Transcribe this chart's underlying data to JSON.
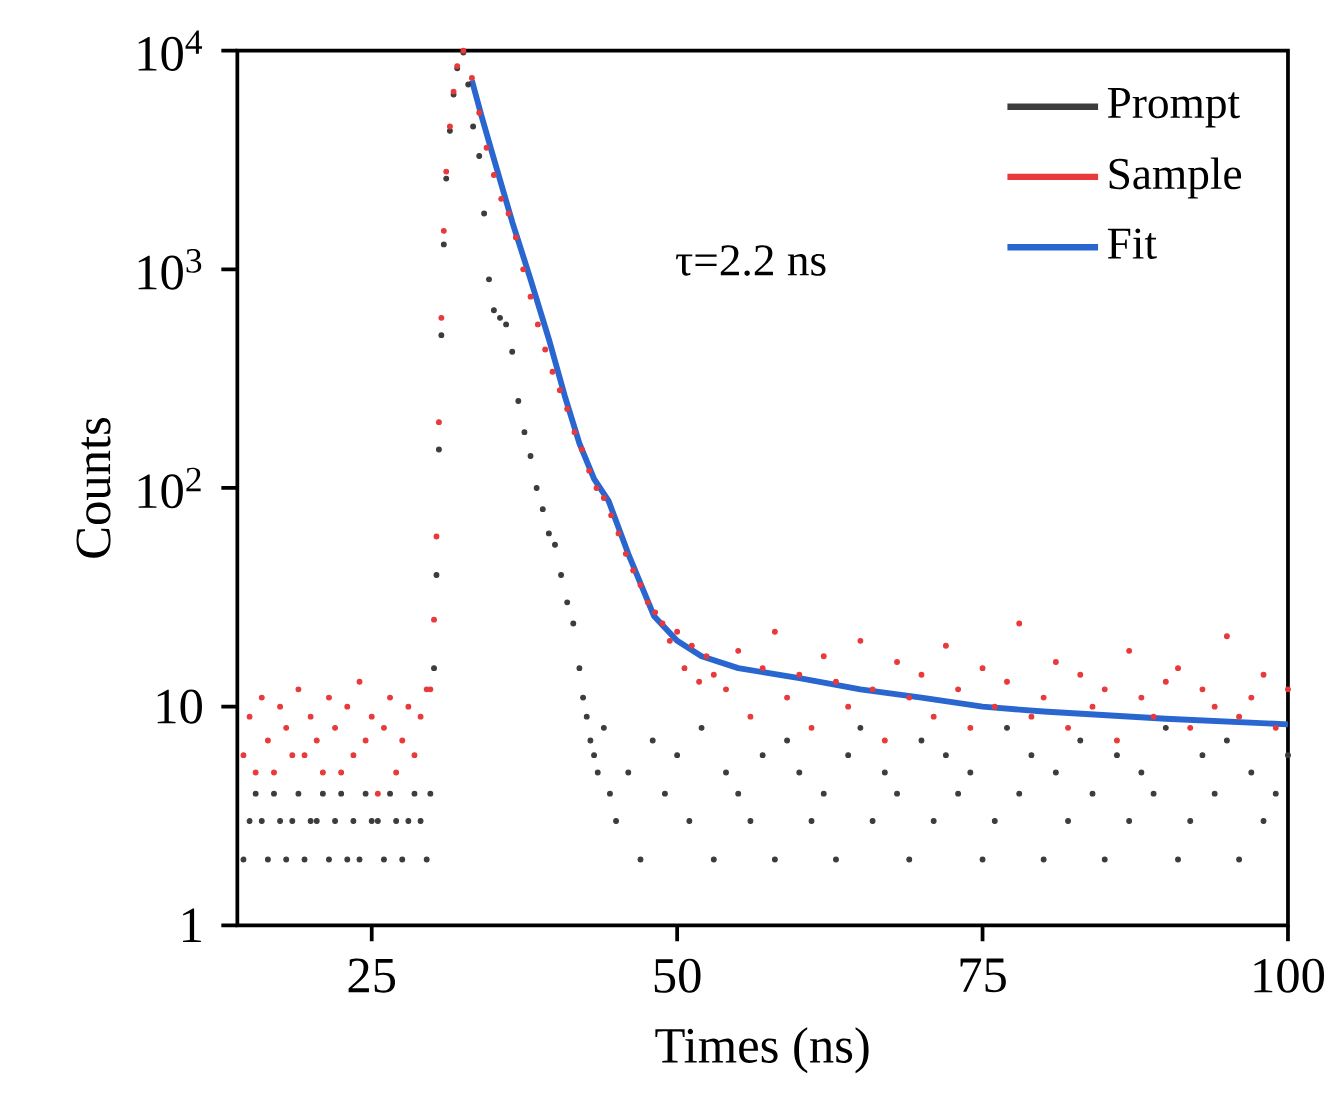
{
  "chart_data": {
    "type": "scatter",
    "xlabel": "Times (ns)",
    "ylabel": "Counts",
    "log": "y",
    "xlim": [
      14,
      100
    ],
    "xticks": [
      25,
      50,
      75,
      100
    ],
    "ylim": [
      1,
      10000
    ],
    "yticks": [
      1,
      10,
      {
        "value": 100,
        "label": "10$^{2}$"
      },
      {
        "value": 1000,
        "label": "10$^{3}$"
      },
      {
        "value": 10000,
        "label": "10$^{4}$"
      }
    ],
    "legend": "top right",
    "annotations": [
      "τ=2.2 ns"
    ],
    "series": [
      {
        "name": "Prompt",
        "marker": "circle",
        "color": "#3c3c3c",
        "x": [
          14.5,
          15,
          15.5,
          16,
          16.5,
          17,
          17.5,
          18,
          18.5,
          19,
          19.5,
          20,
          20.5,
          21,
          21.5,
          22,
          22.5,
          23,
          23.5,
          24,
          24.5,
          25,
          25.5,
          26,
          26.5,
          27,
          27.5,
          28,
          28.5,
          29,
          29.5,
          29.8,
          30.1,
          30.3,
          30.5,
          30.7,
          30.9,
          31.1,
          31.4,
          31.7,
          32,
          32.5,
          32.9,
          33.3,
          33.8,
          34.2,
          34.6,
          35,
          35.5,
          36,
          36.5,
          37,
          37.5,
          38,
          38.5,
          39,
          39.5,
          40,
          40.5,
          41,
          41.5,
          42,
          42.3,
          42.6,
          42.9,
          43.2,
          43.5,
          44,
          44.5,
          45,
          46,
          47,
          48,
          49,
          50,
          51,
          52,
          53,
          54,
          55,
          56,
          57,
          58,
          59,
          60,
          61,
          62,
          63,
          64,
          65,
          66,
          67,
          68,
          69,
          70,
          71,
          72,
          73,
          74,
          75,
          76,
          77,
          78,
          79,
          80,
          81,
          82,
          83,
          84,
          85,
          86,
          87,
          88,
          89,
          90,
          91,
          92,
          93,
          94,
          95,
          96,
          97,
          98,
          99,
          100
        ],
        "values": [
          2,
          3,
          4,
          3,
          2,
          4,
          3,
          2,
          3,
          4,
          2,
          3,
          3,
          4,
          2,
          3,
          4,
          2,
          3,
          2,
          4,
          3,
          3,
          2,
          4,
          3,
          2,
          3,
          4,
          3,
          2,
          4,
          15,
          40,
          150,
          500,
          1300,
          2600,
          4300,
          6300,
          8300,
          9800,
          7000,
          4500,
          3300,
          1800,
          900,
          650,
          600,
          560,
          420,
          250,
          180,
          140,
          100,
          80,
          62,
          55,
          40,
          30,
          24,
          15,
          11,
          9,
          7,
          6,
          5,
          8,
          4,
          3,
          5,
          2,
          7,
          4,
          6,
          3,
          8,
          2,
          5,
          4,
          3,
          6,
          2,
          7,
          5,
          3,
          4,
          2,
          6,
          8,
          3,
          5,
          4,
          2,
          7,
          3,
          6,
          4,
          5,
          2,
          3,
          8,
          4,
          6,
          2,
          5,
          3,
          7,
          4,
          2,
          6,
          3,
          5,
          4,
          8,
          2,
          3,
          6,
          4,
          7,
          2,
          5,
          3,
          4,
          6
        ]
      },
      {
        "name": "Sample",
        "marker": "circle",
        "color": "#e8393b",
        "x": [
          14.5,
          15,
          15.5,
          16,
          16.5,
          17,
          17.5,
          18,
          18.5,
          19,
          19.5,
          20,
          20.5,
          21,
          21.5,
          22,
          22.5,
          23,
          23.5,
          24,
          24.5,
          25,
          25.5,
          26,
          26.5,
          27,
          27.5,
          28,
          28.5,
          29,
          29.5,
          29.8,
          30.1,
          30.3,
          30.5,
          30.7,
          30.9,
          31.1,
          31.4,
          31.7,
          32,
          32.5,
          33.2,
          33.8,
          34.4,
          35,
          35.6,
          36.2,
          36.8,
          37.4,
          38,
          38.6,
          39.2,
          39.8,
          40.4,
          41,
          41.6,
          42.2,
          42.8,
          43.4,
          44,
          44.6,
          45.2,
          45.8,
          46.4,
          47,
          47.6,
          48.2,
          48.8,
          49.4,
          50,
          50.6,
          51.2,
          51.8,
          52.4,
          53,
          54,
          55,
          56,
          57,
          58,
          59,
          60,
          61,
          62,
          63,
          64,
          65,
          66,
          67,
          68,
          69,
          70,
          71,
          72,
          73,
          74,
          75,
          76,
          77,
          78,
          79,
          80,
          81,
          82,
          83,
          84,
          85,
          86,
          87,
          88,
          89,
          90,
          91,
          92,
          93,
          94,
          95,
          96,
          97,
          98,
          99,
          100
        ],
        "values": [
          6,
          9,
          5,
          11,
          7,
          5,
          10,
          8,
          6,
          12,
          6,
          9,
          7,
          5,
          11,
          8,
          5,
          10,
          6,
          13,
          7,
          9,
          4,
          8,
          11,
          5,
          7,
          10,
          6,
          9,
          12,
          12,
          25,
          60,
          200,
          600,
          1500,
          2800,
          4500,
          6500,
          8500,
          10000,
          7500,
          5200,
          3600,
          2700,
          2100,
          1800,
          1400,
          1000,
          750,
          560,
          430,
          340,
          280,
          230,
          180,
          150,
          120,
          100,
          90,
          75,
          62,
          50,
          42,
          36,
          30,
          27,
          24,
          20,
          22,
          15,
          19,
          13,
          17,
          14,
          12,
          18,
          9,
          15,
          22,
          11,
          14,
          8,
          17,
          13,
          10,
          20,
          12,
          7,
          16,
          11,
          14,
          9,
          19,
          12,
          8,
          15,
          10,
          13,
          24,
          9,
          11,
          16,
          8,
          14,
          10,
          12,
          7,
          18,
          11,
          9,
          13,
          15,
          8,
          12,
          10,
          21,
          9,
          11,
          14,
          8,
          12
        ]
      },
      {
        "name": "Fit",
        "type": "line",
        "marker": "none",
        "line_style": "solid",
        "color": "#2a66d0",
        "x": [
          33.2,
          34,
          35,
          36.5,
          38,
          39.5,
          40.8,
          42,
          43.2,
          44.4,
          46,
          48.1,
          50,
          52,
          55,
          60,
          65,
          70,
          75,
          80,
          90,
          100
        ],
        "values": [
          7300,
          5000,
          3200,
          1650,
          900,
          480,
          264,
          160,
          110,
          87,
          50,
          26,
          20,
          17,
          15,
          13.5,
          12,
          11,
          10,
          9.5,
          8.8,
          8.3
        ]
      }
    ]
  }
}
